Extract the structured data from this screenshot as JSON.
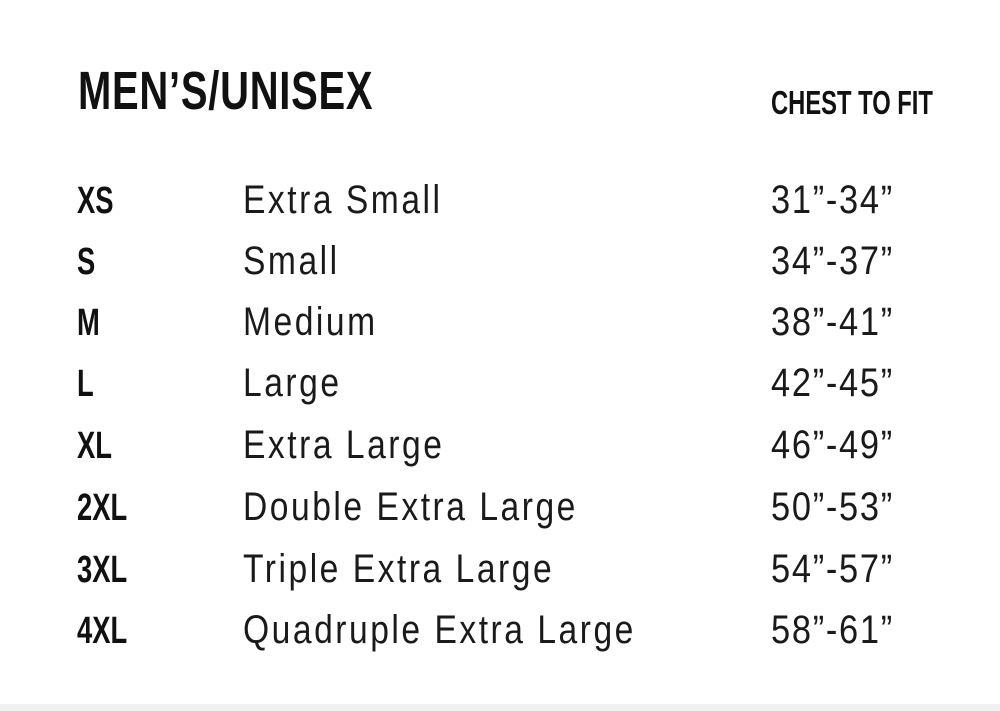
{
  "title": "MEN’S/UNISEX",
  "column_header": "CHEST TO FIT",
  "rows": [
    {
      "code": "XS",
      "name": "Extra Small",
      "chest": "31”-34”"
    },
    {
      "code": "S",
      "name": "Small",
      "chest": "34”-37”"
    },
    {
      "code": "M",
      "name": "Medium",
      "chest": "38”-41”"
    },
    {
      "code": "L",
      "name": "Large",
      "chest": "42”-45”"
    },
    {
      "code": "XL",
      "name": "Extra Large",
      "chest": "46”-49”"
    },
    {
      "code": "2XL",
      "name": "Double Extra Large",
      "chest": "50”-53”"
    },
    {
      "code": "3XL",
      "name": "Triple Extra Large",
      "chest": "54”-57”"
    },
    {
      "code": "4XL",
      "name": "Quadruple Extra Large",
      "chest": "58”-61”"
    }
  ]
}
